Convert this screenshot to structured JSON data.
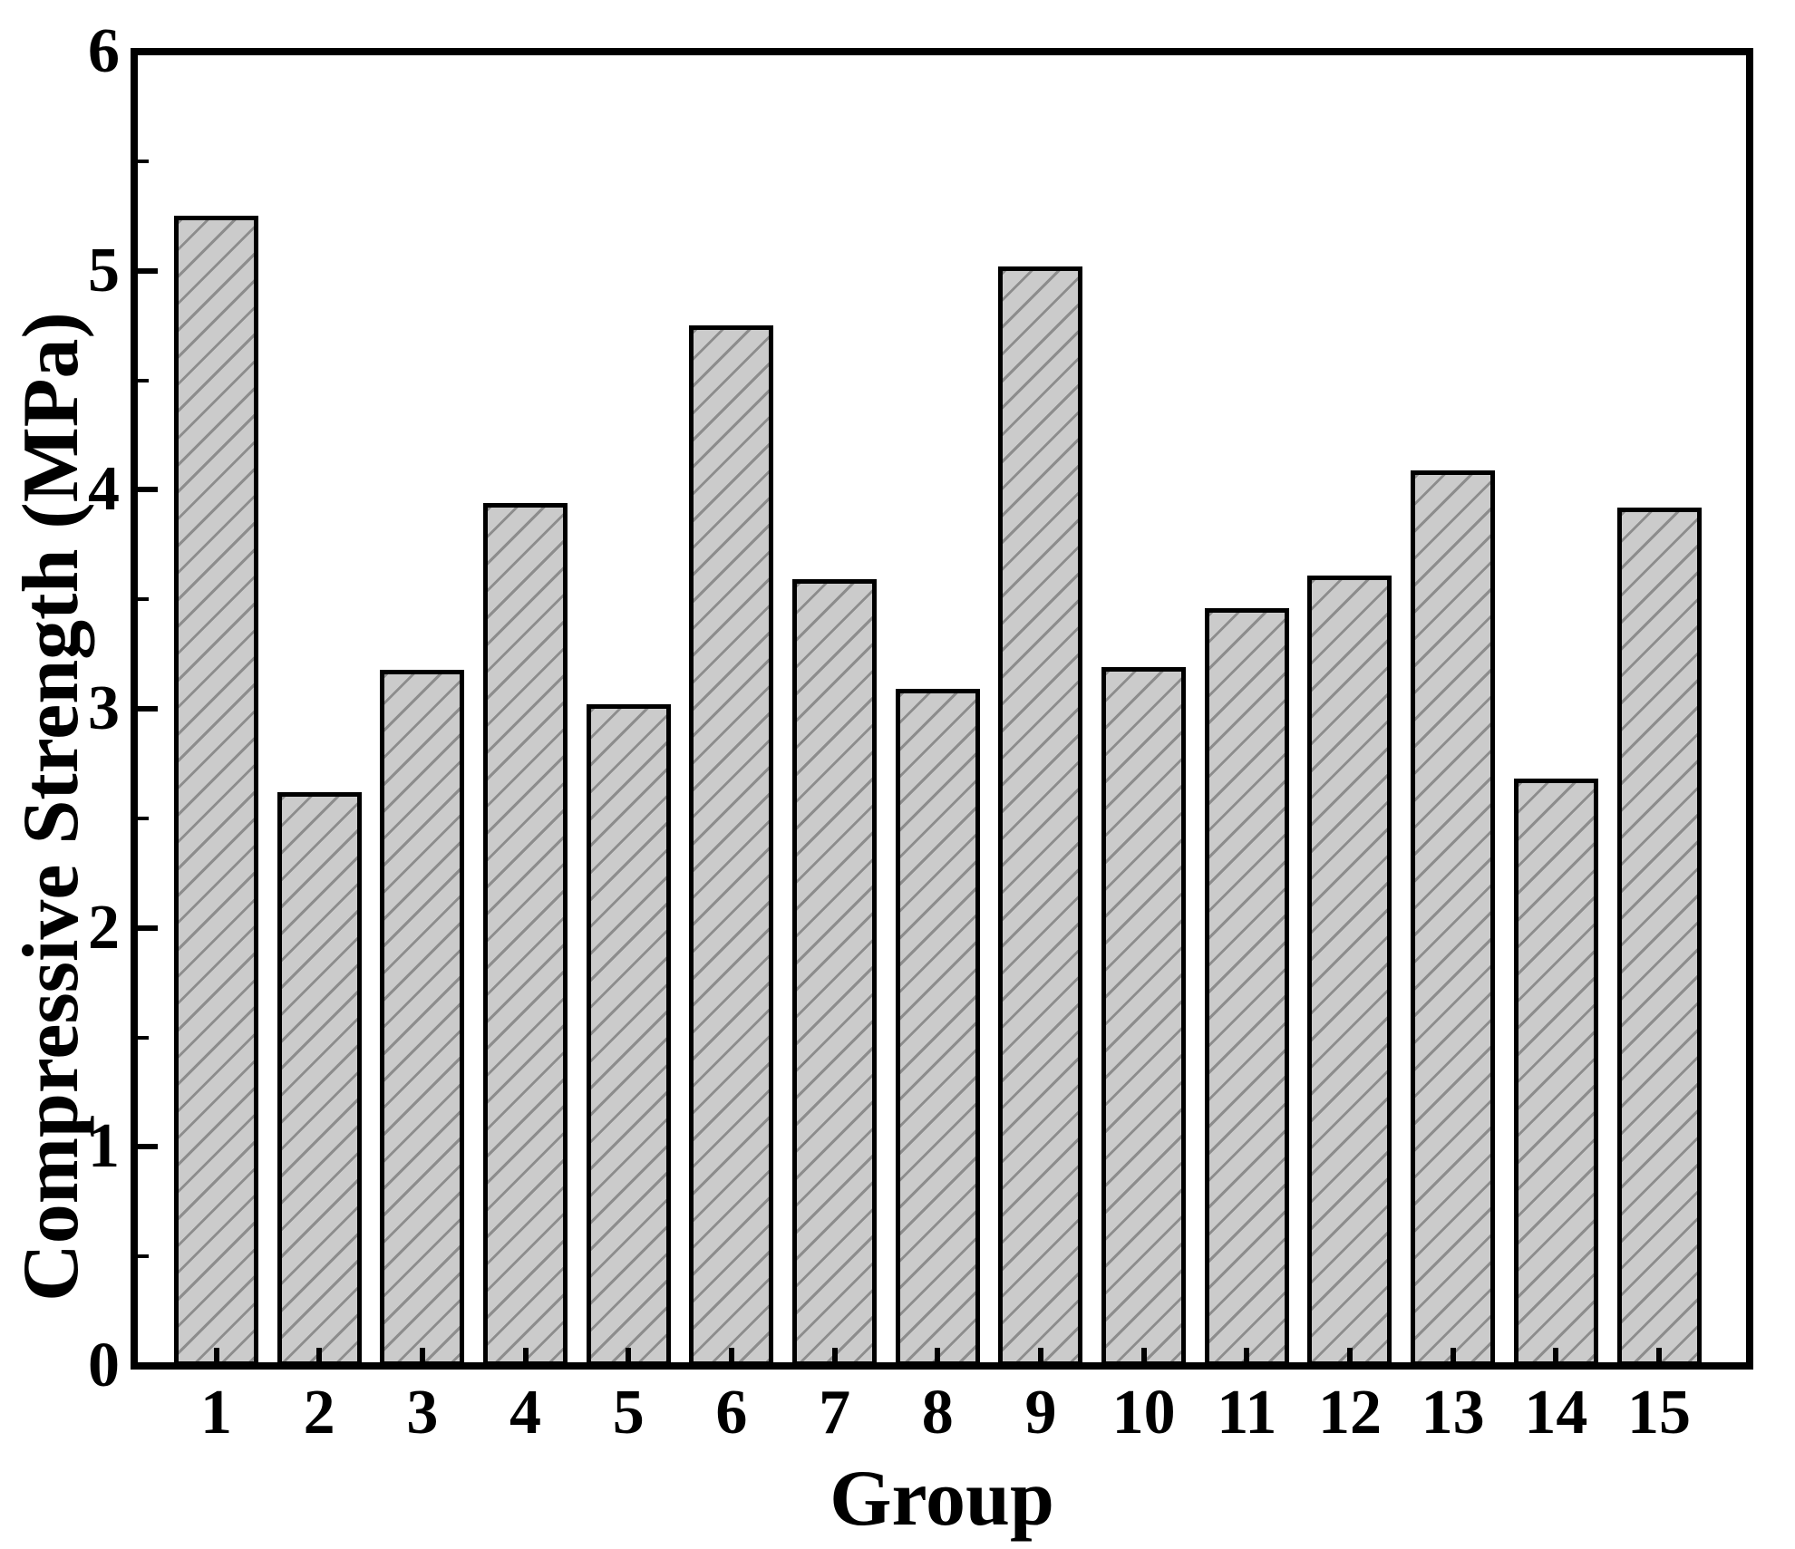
{
  "chart_data": {
    "type": "bar",
    "categories": [
      "1",
      "2",
      "3",
      "4",
      "5",
      "6",
      "7",
      "8",
      "9",
      "10",
      "11",
      "12",
      "13",
      "14",
      "15"
    ],
    "values": [
      5.25,
      2.62,
      3.18,
      3.94,
      3.02,
      4.75,
      3.59,
      3.09,
      5.02,
      3.19,
      3.46,
      3.61,
      4.09,
      2.68,
      3.92
    ],
    "title": "",
    "xlabel": "Group",
    "ylabel": "Compressive Strength (MPa)",
    "ylim": [
      0,
      6
    ],
    "yticks": [
      0,
      1,
      2,
      3,
      4,
      5,
      6
    ],
    "ytick_minor_step": 0.5,
    "grid": false,
    "legend": false,
    "style": {
      "bar_fill": "#cbcbcb",
      "hatch_line": "#8d8d8d",
      "bar_border": "#000000",
      "frame_color": "#000000",
      "hatch_pattern": "diagonal-forward"
    }
  }
}
